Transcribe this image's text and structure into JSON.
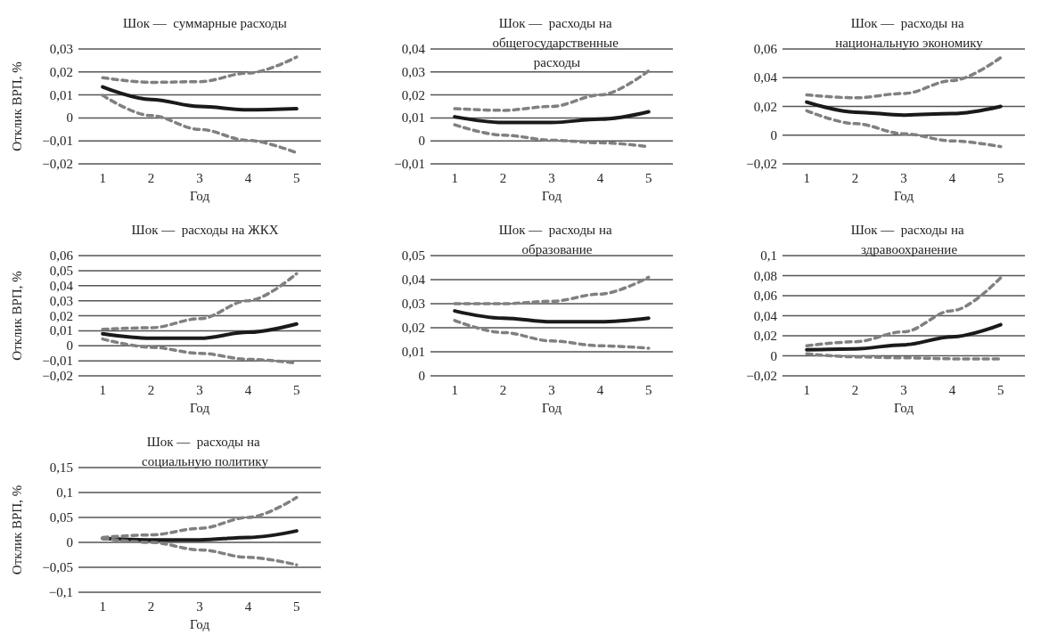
{
  "chart_data": [
    {
      "type": "line",
      "title": "Шок —  суммарные расходы",
      "xlabel": "Год",
      "ylabel": "Отклик ВРП, %",
      "categories": [
        "1",
        "2",
        "3",
        "4",
        "5"
      ],
      "ylim": [
        -0.02,
        0.03
      ],
      "yticks": [
        {
          "value": -0.02,
          "label": "−0,02"
        },
        {
          "value": -0.01,
          "label": "−0,01"
        },
        {
          "value": 0,
          "label": "0"
        },
        {
          "value": 0.01,
          "label": "0,01"
        },
        {
          "value": 0.02,
          "label": "0,02"
        },
        {
          "value": 0.03,
          "label": "0,03"
        }
      ],
      "grid": "y",
      "marker": "none",
      "series": [
        {
          "color": "#1a1a1a",
          "line_style": "solid",
          "values": [
            0.0135,
            0.008,
            0.005,
            0.0035,
            0.004
          ]
        },
        {
          "color": "#808080",
          "line_style": "dashed",
          "values": [
            0.0175,
            0.0155,
            0.0158,
            0.0195,
            0.0265
          ]
        },
        {
          "color": "#808080",
          "line_style": "dashed",
          "values": [
            0.0098,
            0.001,
            -0.005,
            -0.0098,
            -0.0152
          ]
        }
      ]
    },
    {
      "type": "line",
      "title": "Шок —  расходы на общегосударственные расходы",
      "xlabel": "Год",
      "categories": [
        "1",
        "2",
        "3",
        "4",
        "5"
      ],
      "ylim": [
        -0.01,
        0.04
      ],
      "yticks": [
        {
          "value": -0.01,
          "label": "−0,01"
        },
        {
          "value": 0,
          "label": "0"
        },
        {
          "value": 0.01,
          "label": "0,01"
        },
        {
          "value": 0.02,
          "label": "0,02"
        },
        {
          "value": 0.03,
          "label": "0,03"
        },
        {
          "value": 0.04,
          "label": "0,04"
        }
      ],
      "grid": "y",
      "marker": "none",
      "series": [
        {
          "color": "#1a1a1a",
          "line_style": "solid",
          "values": [
            0.0105,
            0.008,
            0.008,
            0.0095,
            0.0127
          ]
        },
        {
          "color": "#808080",
          "line_style": "dashed",
          "values": [
            0.014,
            0.0133,
            0.015,
            0.02,
            0.0305
          ]
        },
        {
          "color": "#808080",
          "line_style": "dashed",
          "values": [
            0.007,
            0.0025,
            0.0003,
            -0.0008,
            -0.0025
          ]
        }
      ]
    },
    {
      "type": "line",
      "title": "Шок —  расходы на национальную экономику",
      "xlabel": "Год",
      "categories": [
        "1",
        "2",
        "3",
        "4",
        "5"
      ],
      "ylim": [
        -0.02,
        0.06
      ],
      "yticks": [
        {
          "value": -0.02,
          "label": "−0,02"
        },
        {
          "value": 0,
          "label": "0"
        },
        {
          "value": 0.02,
          "label": "0,02"
        },
        {
          "value": 0.04,
          "label": "0,04"
        },
        {
          "value": 0.06,
          "label": "0,06"
        }
      ],
      "grid": "y",
      "marker": "none",
      "series": [
        {
          "color": "#1a1a1a",
          "line_style": "solid",
          "values": [
            0.023,
            0.016,
            0.014,
            0.015,
            0.02
          ]
        },
        {
          "color": "#808080",
          "line_style": "dashed",
          "values": [
            0.028,
            0.026,
            0.029,
            0.038,
            0.054
          ]
        },
        {
          "color": "#808080",
          "line_style": "dashed",
          "values": [
            0.017,
            0.008,
            0.001,
            -0.004,
            -0.008
          ]
        }
      ]
    },
    {
      "type": "line",
      "title": "Шок —  расходы на ЖКХ",
      "xlabel": "Год",
      "ylabel": "Отклик ВРП, %",
      "categories": [
        "1",
        "2",
        "3",
        "4",
        "5"
      ],
      "ylim": [
        -0.02,
        0.06
      ],
      "yticks": [
        {
          "value": -0.02,
          "label": "−0,02"
        },
        {
          "value": -0.01,
          "label": "−0,01"
        },
        {
          "value": 0,
          "label": "0"
        },
        {
          "value": 0.01,
          "label": "0,01"
        },
        {
          "value": 0.02,
          "label": "0,02"
        },
        {
          "value": 0.03,
          "label": "0,03"
        },
        {
          "value": 0.04,
          "label": "0,04"
        },
        {
          "value": 0.05,
          "label": "0,05"
        },
        {
          "value": 0.06,
          "label": "0,06"
        }
      ],
      "grid": "y",
      "marker": "none",
      "series": [
        {
          "color": "#1a1a1a",
          "line_style": "solid",
          "values": [
            0.008,
            0.005,
            0.005,
            0.009,
            0.0145
          ]
        },
        {
          "color": "#808080",
          "line_style": "dashed",
          "values": [
            0.011,
            0.012,
            0.018,
            0.03,
            0.048
          ]
        },
        {
          "color": "#808080",
          "line_style": "dashed",
          "values": [
            0.0045,
            -0.001,
            -0.005,
            -0.009,
            -0.0115
          ]
        }
      ]
    },
    {
      "type": "line",
      "title": "Шок —  расходы на образование",
      "xlabel": "Год",
      "categories": [
        "1",
        "2",
        "3",
        "4",
        "5"
      ],
      "ylim": [
        0,
        0.05
      ],
      "yticks": [
        {
          "value": 0,
          "label": "0"
        },
        {
          "value": 0.01,
          "label": "0,01"
        },
        {
          "value": 0.02,
          "label": "0,02"
        },
        {
          "value": 0.03,
          "label": "0,03"
        },
        {
          "value": 0.04,
          "label": "0,04"
        },
        {
          "value": 0.05,
          "label": "0,05"
        }
      ],
      "grid": "y",
      "marker": "none",
      "series": [
        {
          "color": "#1a1a1a",
          "line_style": "solid",
          "values": [
            0.027,
            0.024,
            0.0225,
            0.0225,
            0.024
          ]
        },
        {
          "color": "#808080",
          "line_style": "dashed",
          "values": [
            0.03,
            0.03,
            0.031,
            0.034,
            0.041
          ]
        },
        {
          "color": "#808080",
          "line_style": "dashed",
          "values": [
            0.023,
            0.018,
            0.0145,
            0.0125,
            0.0115
          ]
        }
      ]
    },
    {
      "type": "line",
      "title": "Шок —  расходы на здравоохранение",
      "xlabel": "Год",
      "categories": [
        "1",
        "2",
        "3",
        "4",
        "5"
      ],
      "ylim": [
        -0.02,
        0.1
      ],
      "yticks": [
        {
          "value": -0.02,
          "label": "−0,02"
        },
        {
          "value": 0,
          "label": "0"
        },
        {
          "value": 0.02,
          "label": "0,02"
        },
        {
          "value": 0.04,
          "label": "0,04"
        },
        {
          "value": 0.06,
          "label": "0,06"
        },
        {
          "value": 0.08,
          "label": "0,08"
        },
        {
          "value": 0.1,
          "label": "0,1"
        }
      ],
      "grid": "y",
      "marker": "none",
      "series": [
        {
          "color": "#1a1a1a",
          "line_style": "solid",
          "values": [
            0.006,
            0.007,
            0.011,
            0.019,
            0.031
          ]
        },
        {
          "color": "#808080",
          "line_style": "dashed",
          "values": [
            0.01,
            0.014,
            0.024,
            0.045,
            0.078
          ]
        },
        {
          "color": "#808080",
          "line_style": "dashed",
          "values": [
            0.002,
            -0.001,
            -0.002,
            -0.003,
            -0.003
          ]
        }
      ]
    },
    {
      "type": "line",
      "title": "Шок —  расходы на социальную политику",
      "xlabel": "Год",
      "ylabel": "Отклик ВРП, %",
      "categories": [
        "1",
        "2",
        "3",
        "4",
        "5"
      ],
      "ylim": [
        -0.1,
        0.15
      ],
      "yticks": [
        {
          "value": -0.1,
          "label": "−0,1"
        },
        {
          "value": -0.05,
          "label": "−0,05"
        },
        {
          "value": 0,
          "label": "0"
        },
        {
          "value": 0.05,
          "label": "0,05"
        },
        {
          "value": 0.1,
          "label": "0,1"
        },
        {
          "value": 0.15,
          "label": "0,15"
        }
      ],
      "grid": "y",
      "marker": "none",
      "series": [
        {
          "color": "#1a1a1a",
          "line_style": "solid",
          "values": [
            0.008,
            0.005,
            0.005,
            0.01,
            0.023
          ]
        },
        {
          "color": "#808080",
          "line_style": "dashed",
          "values": [
            0.01,
            0.015,
            0.028,
            0.05,
            0.09
          ]
        },
        {
          "color": "#808080",
          "line_style": "dashed",
          "values": [
            0.008,
            0,
            -0.015,
            -0.03,
            -0.045
          ]
        }
      ]
    }
  ]
}
